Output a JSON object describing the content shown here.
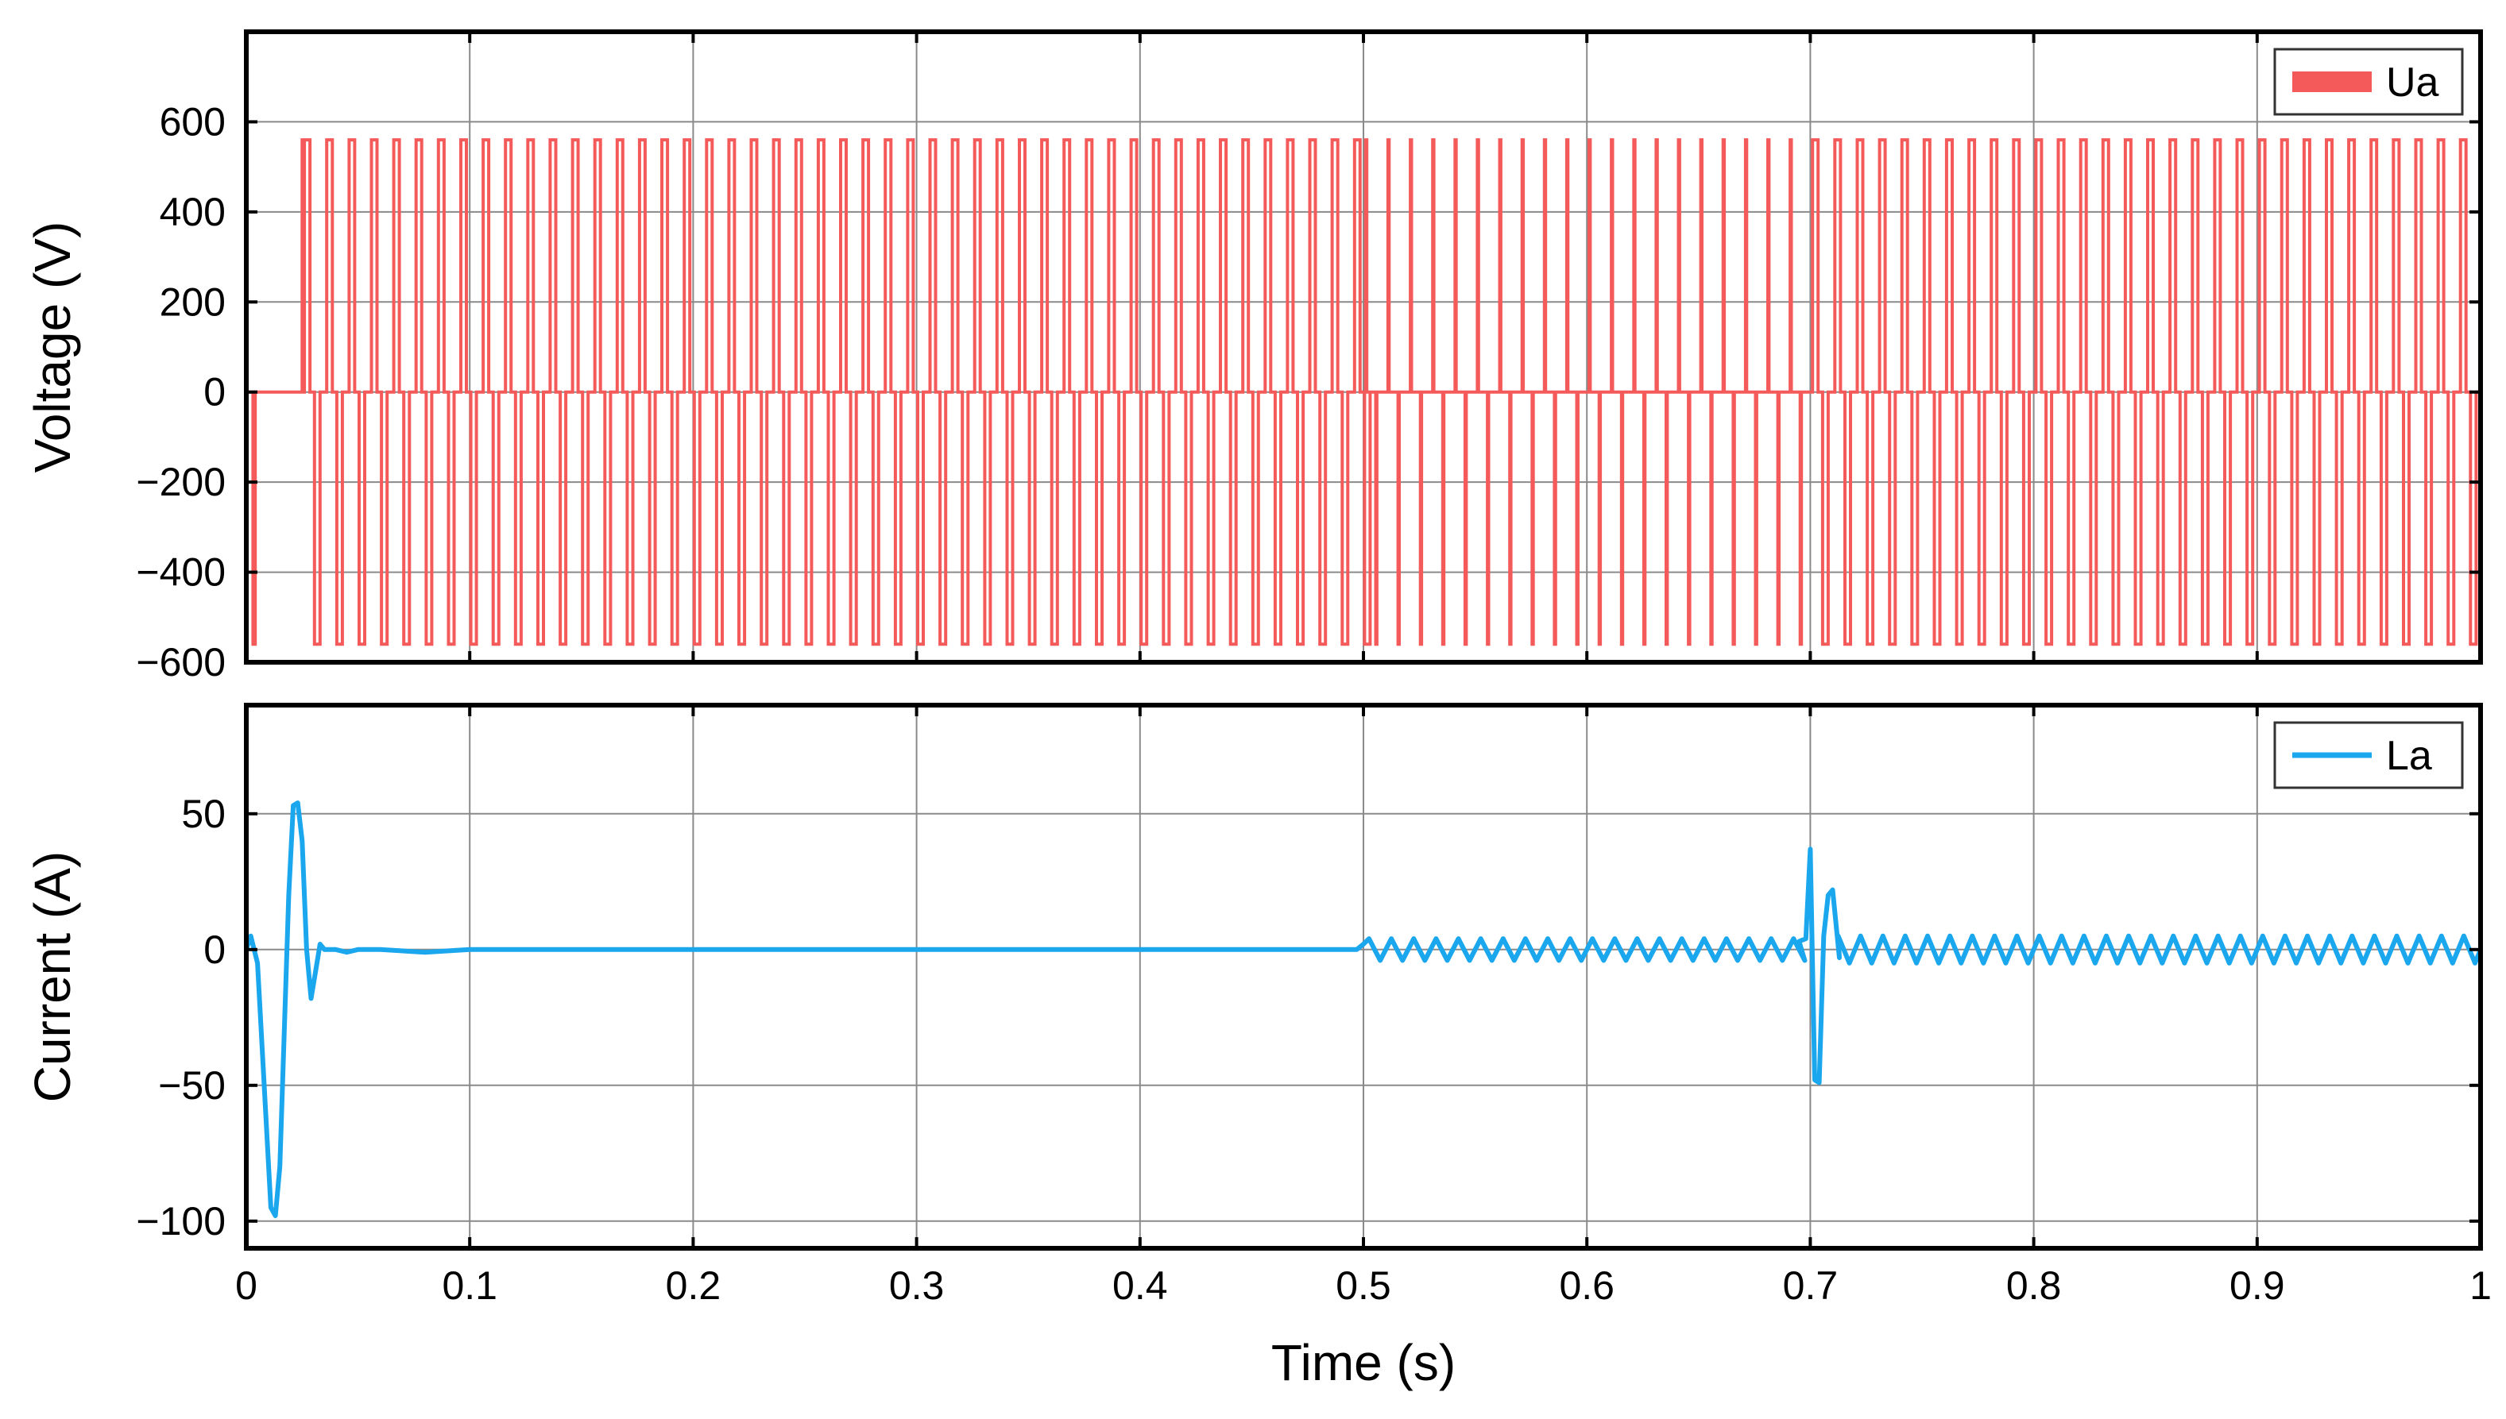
{
  "chart_data": [
    {
      "type": "line",
      "title": "",
      "xlabel": "",
      "ylabel": "Voltage (V)",
      "xlim": [
        0,
        1
      ],
      "ylim": [
        -600,
        800
      ],
      "yticks": [
        -600,
        -400,
        -200,
        0,
        200,
        400,
        600
      ],
      "ytick_labels": [
        "−600",
        "−400",
        "−200",
        "0",
        "200",
        "400",
        "600"
      ],
      "xticks": [
        0,
        0.1,
        0.2,
        0.3,
        0.4,
        0.5,
        0.6,
        0.7,
        0.8,
        0.9,
        1
      ],
      "grid": true,
      "legend": "top-right",
      "series": [
        {
          "name": "Ua",
          "color": "#f55a5a",
          "pulse_level": 560,
          "switching_period": 0.01,
          "segments": [
            {
              "t_start": 0.0,
              "t_end": 0.025,
              "state": "transient"
            },
            {
              "t_start": 0.025,
              "t_end": 0.5,
              "state": "pwm",
              "duty": 0.5
            },
            {
              "t_start": 0.5,
              "t_end": 0.7,
              "state": "pwm",
              "duty": 0.1
            },
            {
              "t_start": 0.7,
              "t_end": 1.0,
              "state": "pwm",
              "duty": 0.5
            }
          ]
        }
      ]
    },
    {
      "type": "line",
      "title": "",
      "xlabel": "Time (s)",
      "ylabel": "Current (A)",
      "xlim": [
        0,
        1
      ],
      "ylim": [
        -110,
        90
      ],
      "yticks": [
        -100,
        -50,
        0,
        50
      ],
      "ytick_labels": [
        "−100",
        "−50",
        "0",
        "50"
      ],
      "xticks": [
        0,
        0.1,
        0.2,
        0.3,
        0.4,
        0.5,
        0.6,
        0.7,
        0.8,
        0.9,
        1
      ],
      "xtick_labels": [
        "0",
        "0.1",
        "0.2",
        "0.3",
        "0.4",
        "0.5",
        "0.6",
        "0.7",
        "0.8",
        "0.9",
        "1"
      ],
      "grid": true,
      "legend": "top-right",
      "series": [
        {
          "name": "La",
          "color": "#1aa7ee",
          "x": [
            0,
            0.002,
            0.005,
            0.008,
            0.011,
            0.013,
            0.015,
            0.017,
            0.019,
            0.021,
            0.023,
            0.025,
            0.027,
            0.029,
            0.031,
            0.033,
            0.035,
            0.037,
            0.04,
            0.045,
            0.05,
            0.06,
            0.08,
            0.1,
            0.15,
            0.2,
            0.25,
            0.3,
            0.35,
            0.4,
            0.45,
            0.497,
            0.5
          ],
          "y": [
            0,
            5,
            -5,
            -50,
            -95,
            -98,
            -80,
            -30,
            20,
            53,
            54,
            40,
            0,
            -18,
            -8,
            2,
            0,
            0,
            0,
            -1,
            0,
            0,
            -1,
            0,
            0,
            0,
            0,
            0,
            0,
            0,
            0,
            0,
            2
          ],
          "oscillation_segments": [
            {
              "t_start": 0.5,
              "t_end": 0.7,
              "amplitude": 4,
              "period": 0.01
            },
            {
              "t_start": 0.71,
              "t_end": 1.0,
              "amplitude": 5,
              "period": 0.01
            }
          ],
          "disturbance": {
            "x": [
              0.695,
              0.698,
              0.7,
              0.702,
              0.704,
              0.706,
              0.708,
              0.71,
              0.713
            ],
            "y": [
              3,
              4,
              37,
              -48,
              -49,
              5,
              20,
              22,
              -3
            ]
          }
        }
      ]
    }
  ]
}
